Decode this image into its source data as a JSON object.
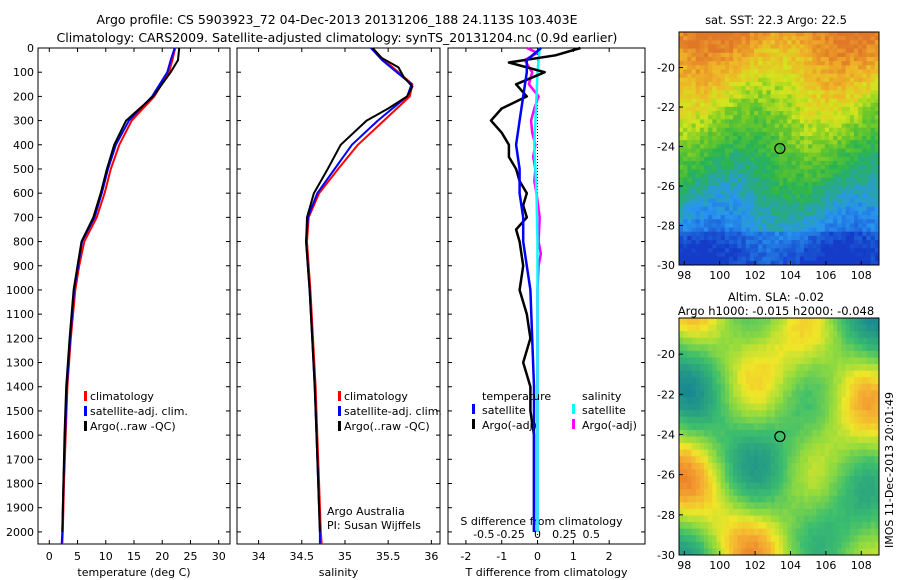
{
  "title_line1": "Argo profile: CS 5903923_72 04-Dec-2013 20131206_188 24.113S 103.403E",
  "title_line2": "Climatology: CARS2009. Satellite-adjusted climatology: synTS_20131204.nc (0.9d earlier)",
  "side_label": "IMOS 11-Dec-2013 20:01:49",
  "colors": {
    "clim": "#ff0000",
    "sat": "#0000ff",
    "argo": "#000000",
    "sat_s": "#00ffff",
    "argo_s": "#ff00ff"
  },
  "chart_data": [
    {
      "type": "line",
      "xlabel": "temperature (deg C)",
      "xticks": [
        "0",
        "5",
        "10",
        "15",
        "20",
        "25",
        "30"
      ],
      "yticks": [
        "0",
        "100",
        "200",
        "300",
        "400",
        "500",
        "600",
        "700",
        "800",
        "900",
        "1000",
        "1100",
        "1200",
        "1300",
        "1400",
        "1500",
        "1600",
        "1700",
        "1800",
        "1900",
        "2000"
      ],
      "xlim": [
        -2,
        32
      ],
      "ylim": [
        2050,
        0
      ],
      "legend": [
        "climatology",
        "satellite-adj. clim.",
        "Argo(..raw -QC)"
      ],
      "series": [
        {
          "name": "climatology",
          "depth": [
            0,
            50,
            100,
            200,
            300,
            400,
            500,
            600,
            700,
            800,
            900,
            1000,
            1200,
            1400,
            1600,
            1800,
            2000,
            2050
          ],
          "values": [
            22.3,
            21.8,
            21.2,
            18.6,
            14.6,
            12.4,
            10.9,
            9.8,
            8.4,
            6.2,
            5.3,
            4.6,
            3.8,
            3.2,
            2.9,
            2.6,
            2.4,
            2.3
          ]
        },
        {
          "name": "satellite-adj. clim.",
          "depth": [
            0,
            50,
            100,
            200,
            300,
            400,
            500,
            600,
            700,
            800,
            900,
            1000,
            1200,
            1400,
            1600,
            1800,
            2000,
            2050
          ],
          "values": [
            22.2,
            21.5,
            20.9,
            18.2,
            14.1,
            11.8,
            10.4,
            9.3,
            8.0,
            5.8,
            5.1,
            4.4,
            3.7,
            3.1,
            2.8,
            2.5,
            2.3,
            2.2
          ]
        },
        {
          "name": "Argo(..raw -QC)",
          "depth": [
            0,
            50,
            100,
            200,
            300,
            400,
            500,
            600,
            700,
            800,
            900,
            1000,
            1200,
            1400,
            1600,
            1800,
            2000
          ],
          "values": [
            23.0,
            22.8,
            21.5,
            18.4,
            13.6,
            11.5,
            10.2,
            9.1,
            7.8,
            5.7,
            5.0,
            4.3,
            3.6,
            3.0,
            2.7,
            2.5,
            2.3
          ]
        }
      ]
    },
    {
      "type": "line",
      "xlabel": "salinity",
      "xticks": [
        "34",
        "34.5",
        "35",
        "35.5",
        "36"
      ],
      "yticks": [],
      "xlim": [
        33.75,
        36.1
      ],
      "ylim": [
        2050,
        0
      ],
      "legend": [
        "climatology",
        "satellite-adj. clim.",
        "Argo(..raw -QC)"
      ],
      "annotation": [
        "Argo Australia",
        "PI: Susan Wijffels"
      ],
      "series": [
        {
          "name": "climatology",
          "depth": [
            0,
            50,
            100,
            150,
            200,
            300,
            400,
            500,
            600,
            700,
            800,
            900,
            1000,
            1200,
            1400,
            1600,
            1800,
            2000,
            2050
          ],
          "values": [
            35.32,
            35.45,
            35.62,
            35.78,
            35.75,
            35.45,
            35.15,
            34.92,
            34.7,
            34.58,
            34.56,
            34.58,
            34.6,
            34.63,
            34.66,
            34.68,
            34.7,
            34.72,
            34.73
          ]
        },
        {
          "name": "satellite-adj. clim.",
          "depth": [
            0,
            50,
            100,
            150,
            200,
            300,
            400,
            500,
            600,
            700,
            800,
            900,
            1000,
            1200,
            1400,
            1600,
            1800,
            2000,
            2050
          ],
          "values": [
            35.3,
            35.43,
            35.6,
            35.77,
            35.72,
            35.38,
            35.08,
            34.88,
            34.68,
            34.57,
            34.55,
            34.57,
            34.59,
            34.62,
            34.65,
            34.67,
            34.69,
            34.71,
            34.71
          ]
        },
        {
          "name": "Argo(..raw -QC)",
          "depth": [
            0,
            40,
            80,
            120,
            160,
            200,
            250,
            300,
            400,
            500,
            600,
            700,
            800,
            900,
            1000,
            1200,
            1400,
            1600,
            1800,
            2000
          ],
          "values": [
            35.32,
            35.42,
            35.62,
            35.68,
            35.78,
            35.72,
            35.5,
            35.25,
            34.95,
            34.8,
            34.64,
            34.56,
            34.55,
            34.57,
            34.59,
            34.62,
            34.65,
            34.67,
            34.69,
            34.71
          ]
        }
      ]
    },
    {
      "type": "line",
      "xlabel": "T difference from climatology",
      "xlabel_top": "S difference from climatology",
      "xticks": [
        "-2",
        "-1",
        "0",
        "1",
        "2"
      ],
      "xticks_top": [
        "-0.5",
        "-0.25",
        "0",
        "0.25",
        "0.5"
      ],
      "yticks": [],
      "xlim": [
        -2.5,
        3
      ],
      "ylim": [
        2050,
        0
      ],
      "legend_groups": [
        {
          "title": "temperature",
          "items": [
            "satellite",
            "Argo(-adj)"
          ]
        },
        {
          "title": "salinity",
          "items": [
            "satellite",
            "Argo(-adj)"
          ]
        }
      ],
      "series": [
        {
          "name": "temperature satellite",
          "depth": [
            0,
            50,
            100,
            200,
            300,
            400,
            500,
            600,
            700,
            800,
            1000,
            1400,
            2000
          ],
          "values": [
            0.1,
            -0.3,
            -0.3,
            -0.4,
            -0.5,
            -0.6,
            -0.5,
            -0.5,
            -0.4,
            -0.4,
            -0.2,
            -0.1,
            -0.1
          ]
        },
        {
          "name": "temperature Argo(-adj)",
          "depth": [
            0,
            30,
            60,
            100,
            150,
            200,
            250,
            300,
            350,
            400,
            450,
            500,
            550,
            600,
            650,
            700,
            750,
            800,
            900,
            1000,
            1100,
            1200,
            1300,
            1400,
            1500,
            1600,
            1700,
            1800,
            1900,
            2000
          ],
          "values": [
            1.2,
            0.5,
            -0.8,
            0.2,
            -0.6,
            -0.3,
            -1.0,
            -1.3,
            -1.0,
            -0.8,
            -0.8,
            -0.6,
            -0.5,
            -0.3,
            -0.4,
            -0.3,
            -0.6,
            -0.5,
            -0.4,
            -0.5,
            -0.3,
            -0.2,
            -0.4,
            -0.2,
            -0.2,
            -0.1,
            -0.1,
            -0.1,
            -0.1,
            -0.1
          ]
        },
        {
          "name": "salinity satellite",
          "depth": [
            0,
            50,
            100,
            200,
            300,
            400,
            500,
            600,
            800,
            1000,
            1400,
            2000
          ],
          "values": [
            0.02,
            0.01,
            0.0,
            -0.01,
            -0.02,
            -0.03,
            -0.02,
            -0.01,
            0.0,
            0.0,
            0.0,
            0.0
          ]
        },
        {
          "name": "salinity Argo(-adj)",
          "depth": [
            0,
            20,
            50,
            100,
            150,
            200,
            250,
            300,
            350,
            400,
            450,
            500,
            550,
            600,
            700,
            800,
            850,
            900,
            1000,
            1200,
            1400,
            1600,
            1800,
            2000
          ],
          "values": [
            -0.1,
            0.0,
            -0.12,
            -0.05,
            -0.08,
            0.01,
            -0.03,
            -0.06,
            -0.05,
            -0.02,
            -0.04,
            -0.02,
            -0.03,
            -0.01,
            0.02,
            0.01,
            0.03,
            0.01,
            0.0,
            0.0,
            0.0,
            0.0,
            0.0,
            0.0
          ]
        }
      ]
    },
    {
      "type": "heatmap",
      "title": "sat. SST: 22.3  Argo: 22.5",
      "xticks": [
        "98",
        "100",
        "102",
        "104",
        "106",
        "108"
      ],
      "yticks": [
        "-20",
        "-22",
        "-24",
        "-26",
        "-28",
        "-30"
      ],
      "xlim": [
        97.7,
        109
      ],
      "ylim": [
        -30,
        -18.2
      ],
      "marker": {
        "lon": 103.4,
        "lat": -24.1
      }
    },
    {
      "type": "heatmap",
      "title_line1": "Altim. SLA: -0.02",
      "title_line2": "Argo h1000: -0.015 h2000: -0.048",
      "xticks": [
        "98",
        "100",
        "102",
        "104",
        "106",
        "108"
      ],
      "yticks": [
        "-20",
        "-22",
        "-24",
        "-26",
        "-28",
        "-30"
      ],
      "xlim": [
        97.7,
        109
      ],
      "ylim": [
        -30,
        -18.2
      ],
      "marker": {
        "lon": 103.4,
        "lat": -24.1
      }
    }
  ]
}
